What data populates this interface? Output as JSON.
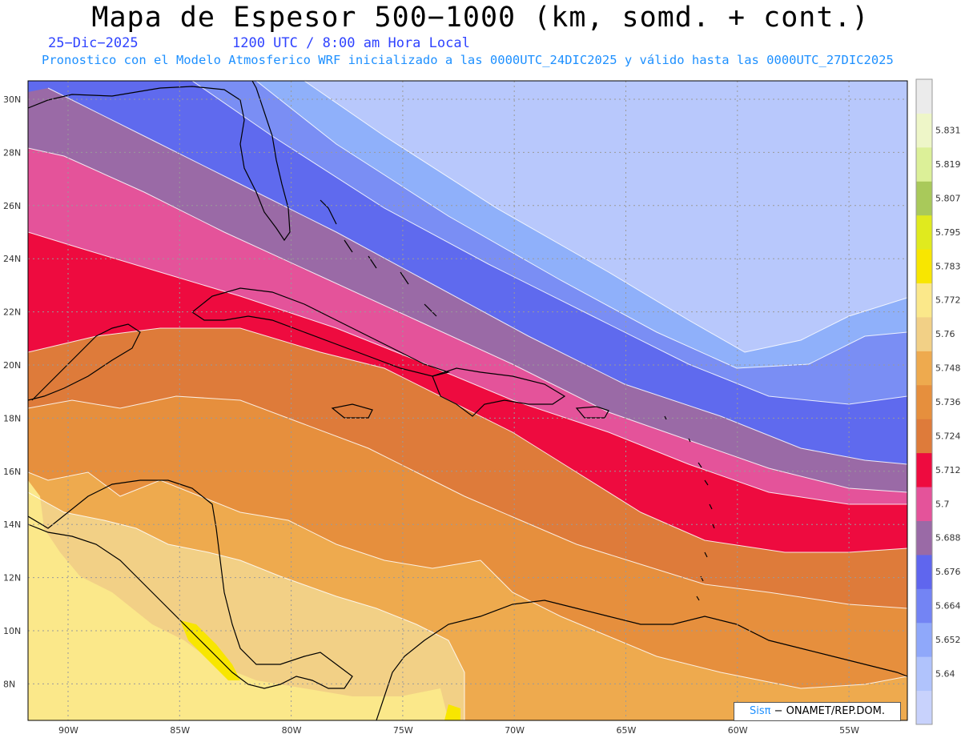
{
  "header": {
    "title": "Mapa de Espesor 500−1000 (km, somd. + cont.)",
    "date": "25−Dic−2025",
    "time": "1200 UTC / 8:00 am Hora Local",
    "subtitle": "Pronostico con el Modelo Atmosferico WRF inicializado a las 0000UTC_24DIC2025 y válido hasta las  0000UTC_27DIC2025"
  },
  "map": {
    "lat_labels": [
      "30N",
      "28N",
      "26N",
      "24N",
      "22N",
      "20N",
      "18N",
      "16N",
      "14N",
      "12N",
      "10N",
      "8N"
    ],
    "lon_labels": [
      "90W",
      "85W",
      "80W",
      "75W",
      "70W",
      "65W",
      "60W",
      "55W"
    ],
    "bands": [
      {
        "name": "band-5640",
        "color": "#b8c8fc"
      },
      {
        "name": "band-5652",
        "color": "#8fb0fa"
      },
      {
        "name": "band-5664",
        "color": "#7a8ef4"
      },
      {
        "name": "band-5676",
        "color": "#5f6aee"
      },
      {
        "name": "band-5688",
        "color": "#9a6aa6"
      },
      {
        "name": "band-5700",
        "color": "#e4539a"
      },
      {
        "name": "band-5712",
        "color": "#ee0b3f"
      },
      {
        "name": "band-5724",
        "color": "#de7b3a"
      },
      {
        "name": "band-5736",
        "color": "#e68f3d"
      },
      {
        "name": "band-5748",
        "color": "#eeaa4e"
      },
      {
        "name": "band-5760",
        "color": "#f2d086"
      },
      {
        "name": "band-5772",
        "color": "#fbe88a"
      }
    ]
  },
  "colorbar": {
    "levels": [
      "5.64",
      "5.652",
      "5.664",
      "5.676",
      "5.688",
      "5.7",
      "5.712",
      "5.724",
      "5.736",
      "5.748",
      "5.76",
      "5.772",
      "5.783",
      "5.795",
      "5.807",
      "5.819",
      "5.831"
    ],
    "colors": [
      "#c8d2fc",
      "#b0c3fc",
      "#8fa8fa",
      "#7384f4",
      "#5f66ee",
      "#9a6aa6",
      "#e4539a",
      "#ee0b3f",
      "#de7b3a",
      "#e68f3d",
      "#eeaa4e",
      "#f2d086",
      "#fbe88a",
      "#f8e600",
      "#e0ea1e",
      "#a9c95a",
      "#dcf098",
      "#eef6c8",
      "#ebebeb"
    ]
  },
  "credit": {
    "sis": "Sisπ",
    "rest": " − ONAMET/REP.DOM."
  }
}
